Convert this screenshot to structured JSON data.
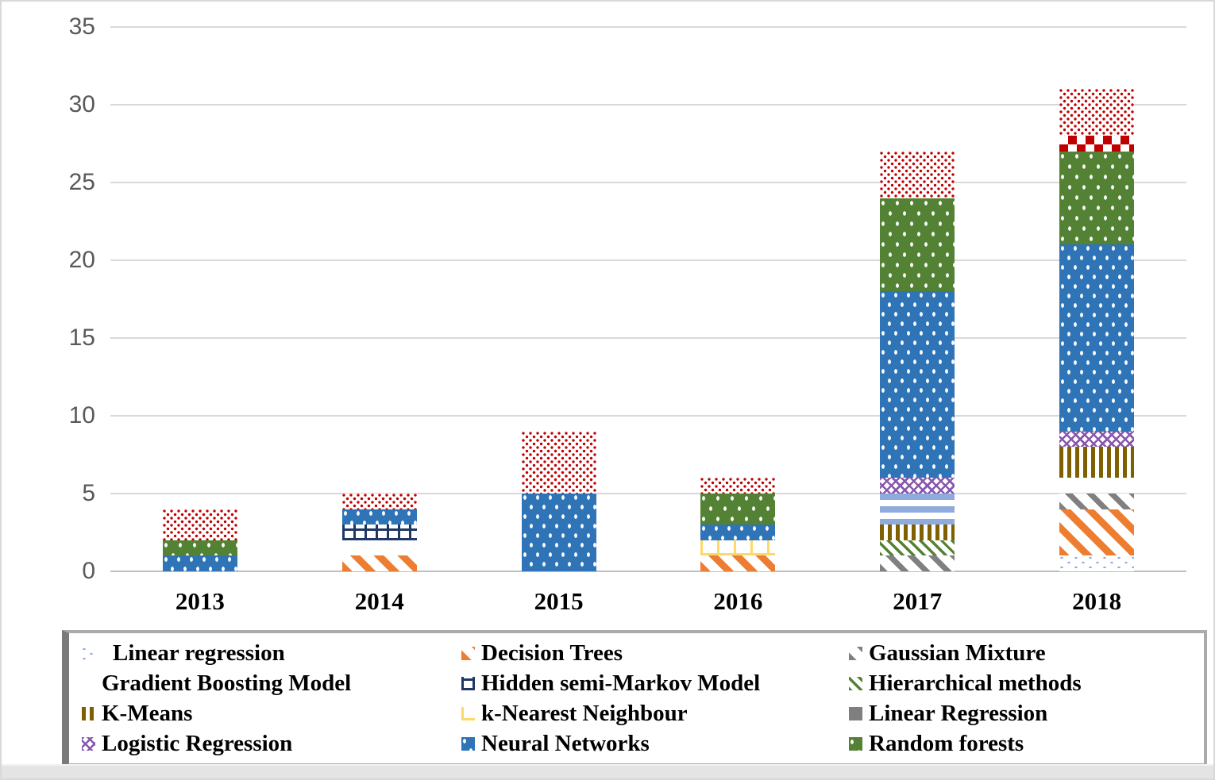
{
  "chart_data": {
    "type": "bar",
    "subtype": "stacked-vertical",
    "title": "",
    "xlabel": "",
    "ylabel": "",
    "categories": [
      "2013",
      "2014",
      "2015",
      "2016",
      "2017",
      "2018"
    ],
    "ylim": [
      0,
      35
    ],
    "yticks": [
      0,
      5,
      10,
      15,
      20,
      25,
      30,
      35
    ],
    "grid": "horizontal",
    "legend_position": "bottom",
    "totals_per_year": [
      4,
      5,
      9,
      6,
      27,
      31
    ],
    "series": [
      {
        "key": "linear_regression_lb",
        "name": "Linear regression",
        "in_legend": true,
        "pattern": "light-blue dashes on white",
        "color": "#8faadc",
        "values": [
          0,
          0,
          0,
          0,
          0,
          1
        ]
      },
      {
        "key": "decision_trees",
        "name": "Decision Trees",
        "in_legend": true,
        "pattern": "orange diagonal stripes",
        "color": "#ed7d31",
        "values": [
          0,
          1,
          0,
          1,
          0,
          3
        ]
      },
      {
        "key": "gaussian_mixture",
        "name": "Gaussian Mixture",
        "in_legend": true,
        "pattern": "gray diagonal stripes",
        "color": "#808080",
        "values": [
          0,
          0,
          0,
          0,
          1,
          1
        ]
      },
      {
        "key": "gradient_boosting",
        "name": "Gradient Boosting Model",
        "in_legend": true,
        "pattern": "black staggered squares",
        "color": "#000000",
        "values": [
          0,
          1,
          0,
          0,
          0,
          1
        ]
      },
      {
        "key": "hsmm",
        "name": "Hidden semi-Markov Model",
        "in_legend": true,
        "pattern": "dark-blue grid",
        "color": "#1f3864",
        "values": [
          0,
          1,
          0,
          0,
          0,
          0
        ]
      },
      {
        "key": "hierarchical",
        "name": "Hierarchical methods",
        "in_legend": true,
        "pattern": "green thin diagonal stripes",
        "color": "#548235",
        "values": [
          0,
          0,
          0,
          0,
          1,
          0
        ]
      },
      {
        "key": "kmeans",
        "name": "K-Means",
        "in_legend": true,
        "pattern": "dark-gold vertical stripes",
        "color": "#7f6000",
        "values": [
          0,
          0,
          0,
          0,
          1,
          2
        ]
      },
      {
        "key": "knn",
        "name": "k-Nearest Neighbour",
        "in_legend": true,
        "pattern": "yellow grid",
        "color": "#ffd966",
        "values": [
          0,
          0,
          0,
          1,
          0,
          0
        ]
      },
      {
        "key": "linear_regression_gray",
        "name": "Linear Regression",
        "in_legend": true,
        "pattern": "solid gray",
        "color": "#7f7f7f",
        "values": [
          0,
          0,
          0,
          0,
          0,
          0
        ]
      },
      {
        "key": "logistic_regression",
        "name": "Logistic Regression",
        "in_legend": true,
        "pattern": "purple diamond lattice",
        "color": "#8757ad",
        "values": [
          0,
          0,
          0,
          0,
          1,
          1
        ]
      },
      {
        "key": "neural_networks",
        "name": "Neural Networks",
        "in_legend": true,
        "pattern": "blue with white dots",
        "color": "#2e74b6",
        "values": [
          1,
          1,
          5,
          1,
          12,
          12
        ]
      },
      {
        "key": "random_forests",
        "name": "Random forests",
        "in_legend": true,
        "pattern": "green with white dots",
        "color": "#548235",
        "values": [
          1,
          0,
          0,
          2,
          6,
          6
        ]
      },
      {
        "key": "lb_stripes",
        "name": "unlabeled (light-blue horizontal stripes)",
        "in_legend": false,
        "pattern": "light-blue horizontal stripes",
        "color": "#8faadc",
        "values": [
          0,
          0,
          0,
          0,
          2,
          0
        ]
      },
      {
        "key": "red_checker",
        "name": "unlabeled (red checkerboard)",
        "in_legend": false,
        "pattern": "red checkerboard",
        "color": "#c00000",
        "values": [
          0,
          0,
          0,
          0,
          0,
          1
        ]
      },
      {
        "key": "red_dots",
        "name": "unlabeled (red dots on white)",
        "in_legend": false,
        "pattern": "dense red dots on white",
        "color": "#c00000",
        "values": [
          2,
          1,
          4,
          1,
          3,
          3
        ]
      }
    ],
    "stack_order_bottom_to_top": {
      "2013": [
        "neural_networks",
        "random_forests",
        "red_dots"
      ],
      "2014": [
        "decision_trees",
        "gradient_boosting",
        "hsmm",
        "neural_networks",
        "red_dots"
      ],
      "2015": [
        "neural_networks",
        "red_dots"
      ],
      "2016": [
        "decision_trees",
        "knn",
        "neural_networks",
        "random_forests",
        "red_dots"
      ],
      "2017": [
        "gaussian_mixture",
        "hierarchical",
        "kmeans",
        "lb_stripes",
        "logistic_regression",
        "neural_networks",
        "random_forests",
        "red_dots"
      ],
      "2018": [
        "linear_regression_lb",
        "decision_trees",
        "gaussian_mixture",
        "gradient_boosting",
        "kmeans",
        "logistic_regression",
        "neural_networks",
        "random_forests",
        "red_checker",
        "red_dots"
      ]
    }
  },
  "legend": {
    "items": [
      {
        "key": "linear_regression_lb",
        "label": "Linear regression"
      },
      {
        "key": "decision_trees",
        "label": "Decision Trees"
      },
      {
        "key": "gaussian_mixture",
        "label": "Gaussian Mixture"
      },
      {
        "key": "gradient_boosting",
        "label": "Gradient Boosting Model"
      },
      {
        "key": "hsmm",
        "label": "Hidden semi-Markov Model"
      },
      {
        "key": "hierarchical",
        "label": "Hierarchical methods"
      },
      {
        "key": "kmeans",
        "label": "K-Means"
      },
      {
        "key": "knn",
        "label": "k-Nearest Neighbour"
      },
      {
        "key": "linear_regression_gray",
        "label": "Linear Regression"
      },
      {
        "key": "logistic_regression",
        "label": "Logistic Regression"
      },
      {
        "key": "neural_networks",
        "label": "Neural Networks"
      },
      {
        "key": "random_forests",
        "label": "Random forests"
      }
    ]
  },
  "colors": {
    "gridline": "#d9d9d9",
    "axis_line": "#bfbfbf",
    "tick_text": "#595959",
    "label_text": "#000000",
    "frame": "#d9d9d9",
    "legend_border": "#ababab"
  }
}
